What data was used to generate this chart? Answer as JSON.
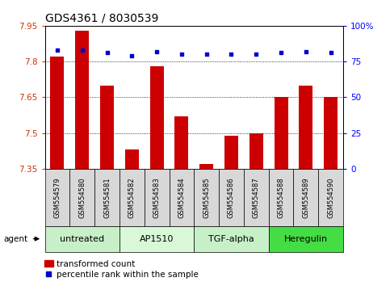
{
  "title": "GDS4361 / 8030539",
  "samples": [
    "GSM554579",
    "GSM554580",
    "GSM554581",
    "GSM554582",
    "GSM554583",
    "GSM554584",
    "GSM554585",
    "GSM554586",
    "GSM554587",
    "GSM554588",
    "GSM554589",
    "GSM554590"
  ],
  "bar_values": [
    7.82,
    7.93,
    7.7,
    7.43,
    7.78,
    7.57,
    7.37,
    7.49,
    7.5,
    7.65,
    7.7,
    7.65
  ],
  "percentile_values": [
    83,
    83,
    81,
    79,
    82,
    80,
    80,
    80,
    80,
    81,
    82,
    81
  ],
  "bar_color": "#cc0000",
  "percentile_color": "#0000cc",
  "ylim_left": [
    7.35,
    7.95
  ],
  "ylim_right": [
    0,
    100
  ],
  "yticks_left": [
    7.35,
    7.5,
    7.65,
    7.8,
    7.95
  ],
  "yticks_right": [
    0,
    25,
    50,
    75,
    100
  ],
  "ytick_labels_left": [
    "7.35",
    "7.5",
    "7.65",
    "7.8",
    "7.95"
  ],
  "ytick_labels_right": [
    "0",
    "25",
    "50",
    "75",
    "100%"
  ],
  "agent_groups": [
    {
      "label": "untreated",
      "start": 0,
      "end": 2,
      "color": "#c8f0c8"
    },
    {
      "label": "AP1510",
      "start": 3,
      "end": 5,
      "color": "#d8f8d8"
    },
    {
      "label": "TGF-alpha",
      "start": 6,
      "end": 8,
      "color": "#c8f0c8"
    },
    {
      "label": "Heregulin",
      "start": 9,
      "end": 11,
      "color": "#44dd44"
    }
  ],
  "agent_label": "agent",
  "legend_bar_label": "transformed count",
  "legend_dot_label": "percentile rank within the sample",
  "bg_color": "#ffffff",
  "plot_bg_color": "#ffffff",
  "grid_color": "#000000",
  "bar_width": 0.55,
  "title_fontsize": 10,
  "tick_fontsize": 7.5,
  "label_fontsize": 7,
  "sample_label_fontsize": 6,
  "agent_fontsize": 8,
  "legend_fontsize": 7.5
}
